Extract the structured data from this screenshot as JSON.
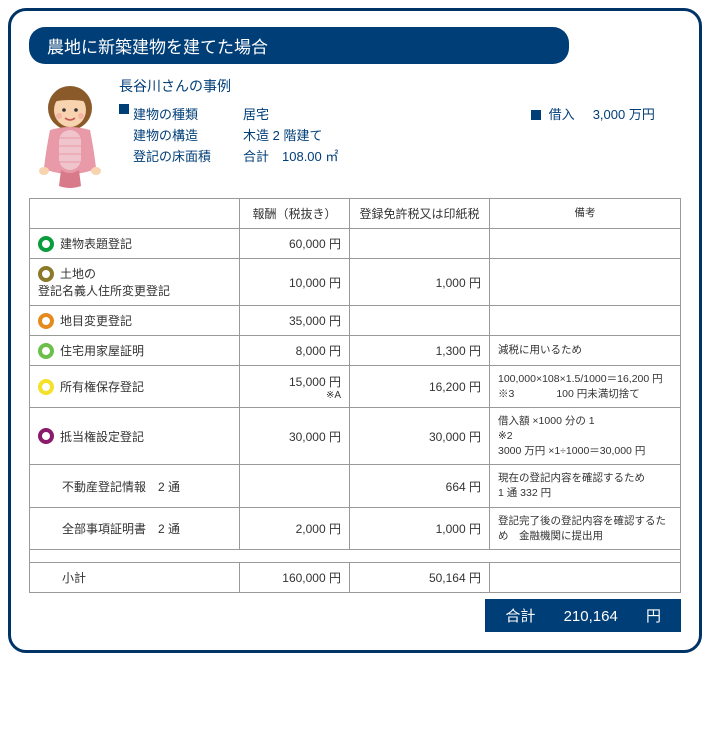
{
  "title": "農地に新築建物を建てた場合",
  "caseName": "長谷川さんの事例",
  "info": {
    "buildingTypeLabel": "建物の種類",
    "buildingTypeVal": "居宅",
    "buildingStructLabel": "建物の構造",
    "buildingStructVal": "木造 2 階建て",
    "floorAreaLabel": "登記の床面積",
    "floorAreaVal": "合計　108.00 ㎡",
    "loanLabel": "借入",
    "loanVal": "3,000 万円"
  },
  "tableHeaders": {
    "fee": "報酬（税抜き）",
    "tax": "登録免許税又は印紙税",
    "note": "備考"
  },
  "bulletColors": {
    "r1": "#0b9d3d",
    "r2": "#8a7a2a",
    "r3": "#e58a1f",
    "r4": "#6cc04a",
    "r5": "#f5e02a",
    "r6": "#8a1a6b"
  },
  "rows": [
    {
      "bullet": "r1",
      "name": "建物表題登記",
      "fee": "60,000 円",
      "tax": "",
      "note": ""
    },
    {
      "bullet": "r2",
      "name": "土地の\n登記名義人住所変更登記",
      "fee": "10,000 円",
      "tax": "1,000 円",
      "note": ""
    },
    {
      "bullet": "r3",
      "name": "地目変更登記",
      "fee": "35,000 円",
      "tax": "",
      "note": ""
    },
    {
      "bullet": "r4",
      "name": "住宅用家屋証明",
      "fee": "8,000 円",
      "tax": "1,300 円",
      "note": "減税に用いるため"
    },
    {
      "bullet": "r5",
      "name": "所有権保存登記",
      "fee": "15,000 円",
      "feeSub": "※A",
      "tax": "16,200 円",
      "note": "100,000×108×1.5/1000＝16,200 円\n※3　　　　100 円未満切捨て"
    },
    {
      "bullet": "r6",
      "name": "抵当権設定登記",
      "fee": "30,000 円",
      "tax": "30,000 円",
      "note": "借入額 ×1000 分の 1\n※2\n3000 万円 ×1÷1000＝30,000 円"
    },
    {
      "bullet": "",
      "name": "不動産登記情報　2 通",
      "fee": "",
      "tax": "664 円",
      "note": "現在の登記内容を確認するため\n1 通 332 円"
    },
    {
      "bullet": "",
      "name": "全部事項証明書　2 通",
      "fee": "2,000 円",
      "tax": "1,000 円",
      "note": "登記完了後の登記内容を確認するため　金融機関に提出用"
    }
  ],
  "subtotal": {
    "label": "小計",
    "fee": "160,000 円",
    "tax": "50,164 円"
  },
  "total": {
    "label": "合計",
    "value": "210,164",
    "unit": "円"
  },
  "colors": {
    "primary": "#003e78",
    "border": "#999999",
    "text": "#333333"
  }
}
